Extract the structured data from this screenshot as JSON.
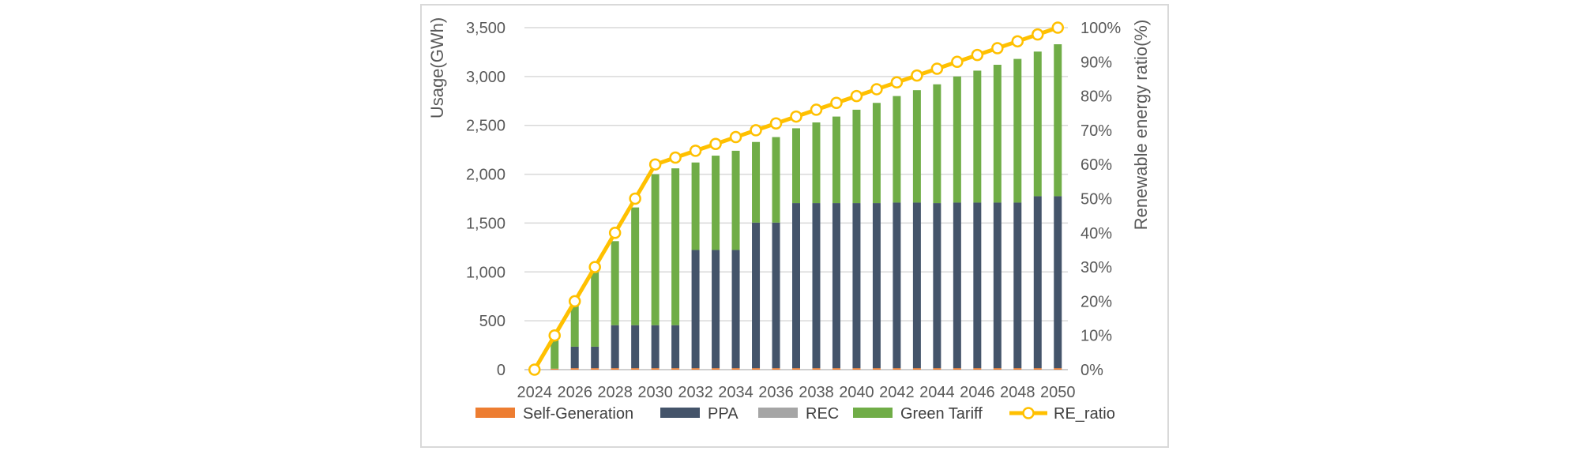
{
  "chart_data": {
    "type": "bar",
    "stacked": true,
    "categories": [
      "2024",
      "2025",
      "2026",
      "2027",
      "2028",
      "2029",
      "2030",
      "2031",
      "2032",
      "2033",
      "2034",
      "2035",
      "2036",
      "2037",
      "2038",
      "2039",
      "2040",
      "2041",
      "2042",
      "2043",
      "2044",
      "2045",
      "2046",
      "2047",
      "2048",
      "2049",
      "2050"
    ],
    "x_tick_labels": [
      "2024",
      "2026",
      "2028",
      "2030",
      "2032",
      "2034",
      "2036",
      "2038",
      "2040",
      "2042",
      "2044",
      "2046",
      "2048",
      "2050"
    ],
    "ylabel": "Usage(GWh)",
    "ylim": [
      0,
      3500
    ],
    "y_ticks": [
      0,
      500,
      1000,
      1500,
      2000,
      2500,
      3000,
      3500
    ],
    "y_tick_labels": [
      "0",
      "500",
      "1,000",
      "1,500",
      "2,000",
      "2,500",
      "3,000",
      "3,500"
    ],
    "y2label": "Renewable energy ratio(%)",
    "y2lim": [
      0,
      100
    ],
    "y2_ticks": [
      0,
      10,
      20,
      30,
      40,
      50,
      60,
      70,
      80,
      90,
      100
    ],
    "y2_tick_labels": [
      "0%",
      "10%",
      "20%",
      "30%",
      "40%",
      "50%",
      "60%",
      "70%",
      "80%",
      "90%",
      "100%"
    ],
    "grid": true,
    "legend_position": "bottom",
    "series": [
      {
        "name": "Self-Generation",
        "color": "#ED7D31",
        "axis": "left",
        "kind": "bar",
        "values": [
          0,
          10,
          15,
          15,
          15,
          15,
          15,
          15,
          15,
          15,
          15,
          15,
          15,
          15,
          15,
          15,
          15,
          15,
          15,
          15,
          15,
          15,
          15,
          15,
          15,
          15,
          15
        ]
      },
      {
        "name": "PPA",
        "color": "#44546A",
        "axis": "left",
        "kind": "bar",
        "values": [
          0,
          0,
          220,
          220,
          440,
          440,
          440,
          440,
          1210,
          1210,
          1210,
          1490,
          1490,
          1690,
          1690,
          1690,
          1690,
          1690,
          1695,
          1695,
          1690,
          1695,
          1695,
          1695,
          1695,
          1760,
          1760
        ]
      },
      {
        "name": "REC",
        "color": "#A5A5A5",
        "axis": "left",
        "kind": "bar",
        "values": [
          0,
          0,
          0,
          0,
          0,
          0,
          0,
          0,
          0,
          0,
          0,
          0,
          0,
          0,
          0,
          0,
          0,
          0,
          0,
          0,
          0,
          0,
          0,
          0,
          0,
          0,
          0
        ]
      },
      {
        "name": "Green Tariff",
        "color": "#70AD47",
        "axis": "left",
        "kind": "bar",
        "values": [
          0,
          290,
          435,
          765,
          860,
          1205,
          1545,
          1605,
          895,
          965,
          1015,
          825,
          875,
          765,
          825,
          885,
          955,
          1025,
          1090,
          1150,
          1215,
          1290,
          1350,
          1410,
          1470,
          1480,
          1555
        ]
      },
      {
        "name": "RE_ratio",
        "color": "#FFC000",
        "axis": "right",
        "kind": "line",
        "values": [
          0,
          10,
          20,
          30,
          40,
          50,
          60,
          62,
          64,
          66,
          68,
          70,
          72,
          74,
          76,
          78,
          80,
          82,
          84,
          86,
          88,
          90,
          92,
          94,
          96,
          98,
          100
        ]
      }
    ]
  }
}
